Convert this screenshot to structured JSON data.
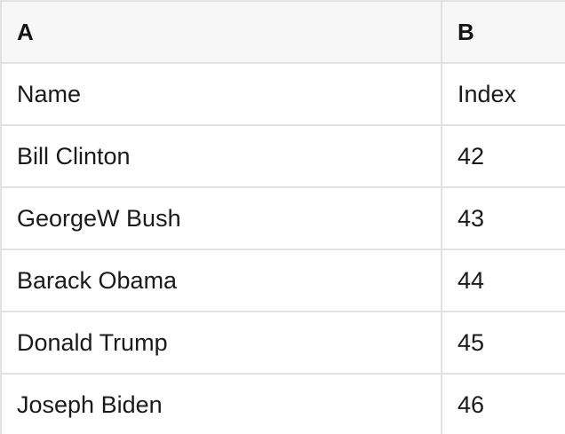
{
  "table": {
    "column_headers": [
      "A",
      "B"
    ],
    "rows": [
      [
        "Name",
        "Index"
      ],
      [
        "Bill Clinton",
        "42"
      ],
      [
        "GeorgeW Bush",
        "43"
      ],
      [
        "Barack Obama",
        "44"
      ],
      [
        "Donald Trump",
        "45"
      ],
      [
        "Joseph Biden",
        "46"
      ]
    ]
  },
  "colors": {
    "header_background": "#f7f7f7",
    "row_background": "#ffffff",
    "border": "#e2e2e2",
    "header_text": "#141414",
    "cell_text": "#1a1a1a"
  }
}
